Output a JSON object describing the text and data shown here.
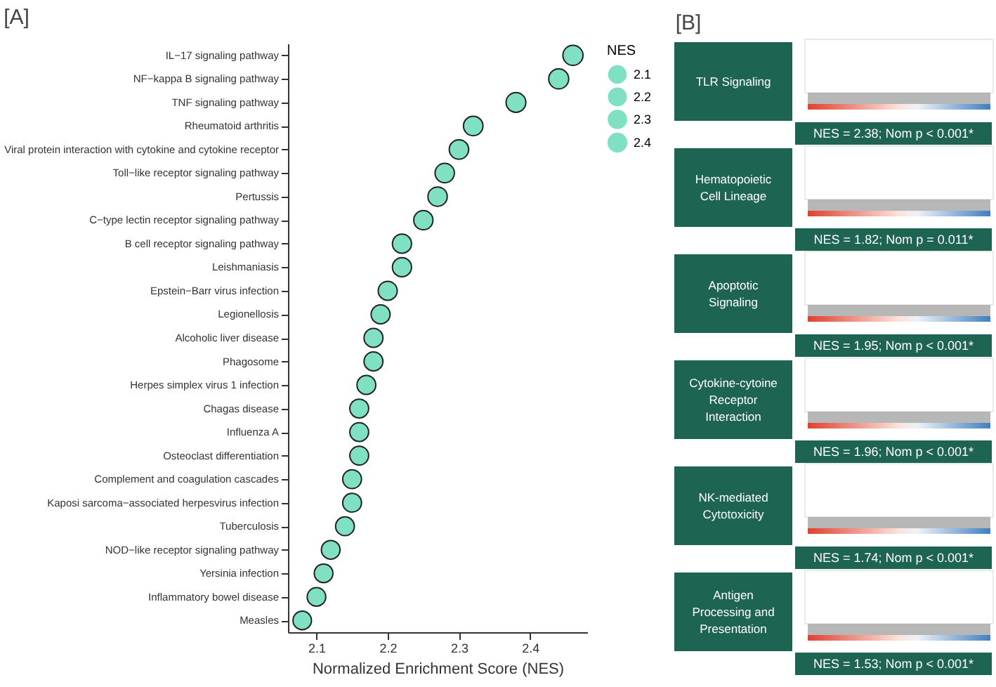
{
  "chart_data": [
    {
      "type": "bubble",
      "orientation": "horizontal",
      "title": "[A]",
      "xlabel": "Normalized Enrichment Score (NES)",
      "legend_title": "NES",
      "grid": false,
      "categories": [
        "IL−17 signaling pathway",
        "NF−kappa B signaling pathway",
        "TNF signaling pathway",
        "Rheumatoid arthritis",
        "Viral protein interaction with cytokine and cytokine receptor",
        "Toll−like receptor signaling pathway",
        "Pertussis",
        "C−type lectin receptor signaling pathway",
        "B cell receptor signaling pathway",
        "Leishmaniasis",
        "Epstein−Barr virus infection",
        "Legionellosis",
        "Alcoholic liver disease",
        "Phagosome",
        "Herpes simplex virus 1 infection",
        "Chagas disease",
        "Influenza A",
        "Osteoclast differentiation",
        "Complement and coagulation cascades",
        "Kaposi sarcoma−associated herpesvirus infection",
        "Tuberculosis",
        "NOD−like receptor signaling pathway",
        "Yersinia infection",
        "Inflammatory bowel disease",
        "Measles"
      ],
      "series": [
        {
          "color": "#7fe0c3",
          "values": [
            2.46,
            2.44,
            2.38,
            2.32,
            2.3,
            2.28,
            2.27,
            2.25,
            2.22,
            2.22,
            2.2,
            2.19,
            2.18,
            2.18,
            2.17,
            2.16,
            2.16,
            2.16,
            2.15,
            2.15,
            2.14,
            2.12,
            2.11,
            2.1,
            2.08
          ],
          "sizes": [
            2.46,
            2.44,
            2.38,
            2.32,
            2.3,
            2.28,
            2.27,
            2.25,
            2.22,
            2.22,
            2.2,
            2.19,
            2.18,
            2.18,
            2.17,
            2.16,
            2.16,
            2.16,
            2.15,
            2.15,
            2.14,
            2.12,
            2.11,
            2.1,
            2.08
          ]
        }
      ],
      "size_legend": [
        2.1,
        2.2,
        2.3,
        2.4
      ],
      "xlim": [
        2.06,
        2.48
      ],
      "xticks": [
        2.1,
        2.2,
        2.3,
        2.4
      ]
    },
    {
      "type": "other",
      "title": "[B]",
      "annotations": [
        "TLR Signaling",
        "NES = 2.38; Nom p < 0.001*",
        "Hematopoietic Cell Lineage",
        "NES = 1.82; Nom p = 0.011*",
        "Apoptotic Signaling",
        "NES = 1.95; Nom p < 0.001*",
        "Cytokine-cytoine Receptor Interaction",
        "NES = 1.96;  Nom p < 0.001*",
        "NK-mediated Cytotoxicity",
        "NES = 1.74;  Nom p < 0.001*",
        "Antigen Processing and Presentation",
        "NES = 1.53;  Nom p < 0.001*"
      ]
    }
  ]
}
